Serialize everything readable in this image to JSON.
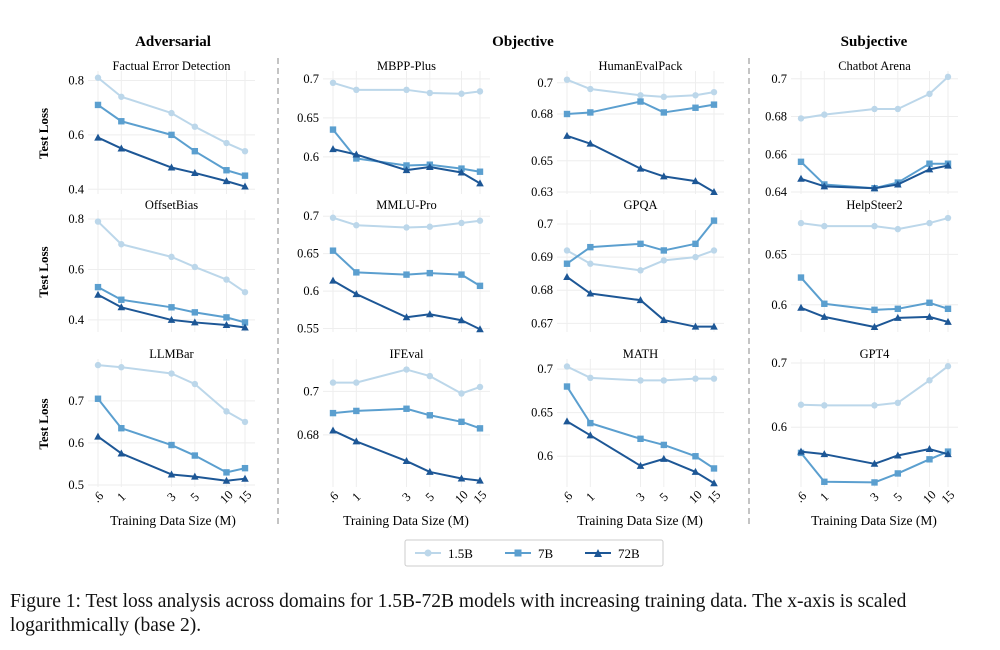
{
  "figure": {
    "groups": [
      "Adversarial",
      "Objective",
      "Subjective"
    ],
    "ylabel": "Test Loss",
    "xlabel": "Training Data Size (M)",
    "legend": {
      "series": [
        {
          "name": "1.5B",
          "color": "#bcd7ea",
          "marker": "circle"
        },
        {
          "name": "7B",
          "color": "#5b9fcf",
          "marker": "square"
        },
        {
          "name": "72B",
          "color": "#1d5796",
          "marker": "triangle"
        }
      ]
    },
    "caption": "Figure 1: Test loss analysis across domains for 1.5B-72B models with increasing training data. The x-axis is scaled logarithmically (base 2)."
  },
  "chart_data": [
    {
      "type": "line",
      "title": "Factual Error Detection",
      "x_ticks": [
        ".6",
        "1",
        "3",
        "5",
        "10",
        "15"
      ],
      "x": [
        0.6,
        1,
        3,
        5,
        10,
        15
      ],
      "y_ticks": [
        0.8,
        0.6,
        0.4
      ],
      "ylim": [
        0.39,
        0.82
      ],
      "series": [
        {
          "name": "1.5B",
          "values": [
            0.81,
            0.74,
            0.68,
            0.63,
            0.57,
            0.54
          ]
        },
        {
          "name": "7B",
          "values": [
            0.71,
            0.65,
            0.6,
            0.54,
            0.47,
            0.45
          ]
        },
        {
          "name": "72B",
          "values": [
            0.59,
            0.55,
            0.48,
            0.46,
            0.43,
            0.41
          ]
        }
      ]
    },
    {
      "type": "line",
      "title": "MBPP-Plus",
      "x_ticks": [
        ".6",
        "1",
        "3",
        "5",
        "10",
        "15"
      ],
      "x": [
        0.6,
        1,
        3,
        5,
        10,
        15
      ],
      "y_ticks": [
        0.7,
        0.65,
        0.6
      ],
      "ylim": [
        0.555,
        0.705
      ],
      "series": [
        {
          "name": "1.5B",
          "values": [
            0.695,
            0.686,
            0.686,
            0.682,
            0.681,
            0.684
          ]
        },
        {
          "name": "7B",
          "values": [
            0.635,
            0.598,
            0.589,
            0.59,
            0.585,
            0.581
          ]
        },
        {
          "name": "72B",
          "values": [
            0.61,
            0.603,
            0.583,
            0.587,
            0.58,
            0.566
          ]
        }
      ]
    },
    {
      "type": "line",
      "title": "HumanEvalPack",
      "x_ticks": [
        ".6",
        "1",
        "3",
        "5",
        "10",
        "15"
      ],
      "x": [
        0.6,
        1,
        3,
        5,
        10,
        15
      ],
      "y_ticks": [
        0.7,
        0.68,
        0.65,
        0.63
      ],
      "ylim": [
        0.63,
        0.705
      ],
      "series": [
        {
          "name": "1.5B",
          "values": [
            0.702,
            0.696,
            0.692,
            0.691,
            0.692,
            0.694
          ]
        },
        {
          "name": "7B",
          "values": [
            0.68,
            0.681,
            0.688,
            0.681,
            0.684,
            0.686
          ]
        },
        {
          "name": "72B",
          "values": [
            0.666,
            0.661,
            0.645,
            0.64,
            0.637,
            0.63
          ]
        }
      ]
    },
    {
      "type": "line",
      "title": "Chatbot Arena",
      "x_ticks": [
        ".6",
        "1",
        "3",
        "5",
        "10",
        "15"
      ],
      "x": [
        0.6,
        1,
        3,
        5,
        10,
        15
      ],
      "y_ticks": [
        0.7,
        0.68,
        0.66,
        0.64
      ],
      "ylim": [
        0.64,
        0.702
      ],
      "series": [
        {
          "name": "1.5B",
          "values": [
            0.679,
            0.681,
            0.684,
            0.684,
            0.692,
            0.701
          ]
        },
        {
          "name": "7B",
          "values": [
            0.656,
            0.644,
            0.642,
            0.645,
            0.655,
            0.655
          ]
        },
        {
          "name": "72B",
          "values": [
            0.647,
            0.643,
            0.642,
            0.644,
            0.652,
            0.654
          ]
        }
      ]
    },
    {
      "type": "line",
      "title": "OffsetBias",
      "x_ticks": [
        ".6",
        "1",
        "3",
        "5",
        "10",
        "15"
      ],
      "x": [
        0.6,
        1,
        3,
        5,
        10,
        15
      ],
      "y_ticks": [
        0.8,
        0.6,
        0.4
      ],
      "ylim": [
        0.36,
        0.82
      ],
      "series": [
        {
          "name": "1.5B",
          "values": [
            0.79,
            0.7,
            0.65,
            0.61,
            0.56,
            0.51
          ]
        },
        {
          "name": "7B",
          "values": [
            0.53,
            0.48,
            0.45,
            0.43,
            0.41,
            0.39
          ]
        },
        {
          "name": "72B",
          "values": [
            0.5,
            0.45,
            0.4,
            0.39,
            0.38,
            0.37
          ]
        }
      ]
    },
    {
      "type": "line",
      "title": "MMLU-Pro",
      "x_ticks": [
        ".6",
        "1",
        "3",
        "5",
        "10",
        "15"
      ],
      "x": [
        0.6,
        1,
        3,
        5,
        10,
        15
      ],
      "y_ticks": [
        0.7,
        0.65,
        0.6,
        0.55
      ],
      "ylim": [
        0.548,
        0.703
      ],
      "series": [
        {
          "name": "1.5B",
          "values": [
            0.698,
            0.688,
            0.685,
            0.686,
            0.691,
            0.694
          ]
        },
        {
          "name": "7B",
          "values": [
            0.654,
            0.625,
            0.622,
            0.624,
            0.622,
            0.607
          ]
        },
        {
          "name": "72B",
          "values": [
            0.614,
            0.596,
            0.565,
            0.569,
            0.561,
            0.549
          ]
        }
      ]
    },
    {
      "type": "line",
      "title": "GPQA",
      "x_ticks": [
        ".6",
        "1",
        "3",
        "5",
        "10",
        "15"
      ],
      "x": [
        0.6,
        1,
        3,
        5,
        10,
        15
      ],
      "y_ticks": [
        0.7,
        0.69,
        0.68,
        0.67
      ],
      "ylim": [
        0.668,
        0.703
      ],
      "series": [
        {
          "name": "1.5B",
          "values": [
            0.692,
            0.688,
            0.686,
            0.689,
            0.69,
            0.692
          ]
        },
        {
          "name": "7B",
          "values": [
            0.688,
            0.693,
            0.694,
            0.692,
            0.694,
            0.701
          ]
        },
        {
          "name": "72B",
          "values": [
            0.684,
            0.679,
            0.677,
            0.671,
            0.669,
            0.669
          ]
        }
      ]
    },
    {
      "type": "line",
      "title": "HelpSteer2",
      "x_ticks": [
        ".6",
        "1",
        "3",
        "5",
        "10",
        "15"
      ],
      "x": [
        0.6,
        1,
        3,
        5,
        10,
        15
      ],
      "y_ticks": [
        0.65,
        0.6
      ],
      "ylim": [
        0.575,
        0.69
      ],
      "series": [
        {
          "name": "1.5B",
          "values": [
            0.681,
            0.678,
            0.678,
            0.675,
            0.681,
            0.686
          ]
        },
        {
          "name": "7B",
          "values": [
            0.627,
            0.601,
            0.595,
            0.596,
            0.602,
            0.596
          ]
        },
        {
          "name": "72B",
          "values": [
            0.597,
            0.588,
            0.578,
            0.587,
            0.588,
            0.583
          ]
        }
      ]
    },
    {
      "type": "line",
      "title": "LLMBar",
      "x_ticks": [
        ".6",
        "1",
        "3",
        "5",
        "10",
        "15"
      ],
      "x": [
        0.6,
        1,
        3,
        5,
        10,
        15
      ],
      "y_ticks": [
        0.7,
        0.6,
        0.5
      ],
      "ylim": [
        0.5,
        0.79
      ],
      "series": [
        {
          "name": "1.5B",
          "values": [
            0.785,
            0.78,
            0.765,
            0.74,
            0.675,
            0.65
          ]
        },
        {
          "name": "7B",
          "values": [
            0.705,
            0.635,
            0.595,
            0.57,
            0.53,
            0.54
          ]
        },
        {
          "name": "72B",
          "values": [
            0.615,
            0.575,
            0.525,
            0.52,
            0.51,
            0.515
          ]
        }
      ]
    },
    {
      "type": "line",
      "title": "IFEval",
      "x_ticks": [
        ".6",
        "1",
        "3",
        "5",
        "10",
        "15"
      ],
      "x": [
        0.6,
        1,
        3,
        5,
        10,
        15
      ],
      "y_ticks": [
        0.7,
        0.68
      ],
      "ylim": [
        0.657,
        0.713
      ],
      "series": [
        {
          "name": "1.5B",
          "values": [
            0.704,
            0.704,
            0.71,
            0.707,
            0.699,
            0.702
          ]
        },
        {
          "name": "7B",
          "values": [
            0.69,
            0.691,
            0.692,
            0.689,
            0.686,
            0.683
          ]
        },
        {
          "name": "72B",
          "values": [
            0.682,
            0.677,
            0.668,
            0.663,
            0.66,
            0.659
          ]
        }
      ]
    },
    {
      "type": "line",
      "title": "MATH",
      "x_ticks": [
        ".6",
        "1",
        "3",
        "5",
        "10",
        "15"
      ],
      "x": [
        0.6,
        1,
        3,
        5,
        10,
        15
      ],
      "y_ticks": [
        0.7,
        0.65,
        0.6
      ],
      "ylim": [
        0.567,
        0.707
      ],
      "series": [
        {
          "name": "1.5B",
          "values": [
            0.703,
            0.69,
            0.687,
            0.687,
            0.689,
            0.689
          ]
        },
        {
          "name": "7B",
          "values": [
            0.68,
            0.638,
            0.62,
            0.613,
            0.6,
            0.586
          ]
        },
        {
          "name": "72B",
          "values": [
            0.64,
            0.624,
            0.589,
            0.597,
            0.582,
            0.569
          ]
        }
      ]
    },
    {
      "type": "line",
      "title": "GPT4",
      "x_ticks": [
        ".6",
        "1",
        "3",
        "5",
        "10",
        "15"
      ],
      "x": [
        0.6,
        1,
        3,
        5,
        10,
        15
      ],
      "y_ticks": [
        0.7,
        0.6
      ],
      "ylim": [
        0.51,
        0.7
      ],
      "series": [
        {
          "name": "1.5B",
          "values": [
            0.635,
            0.634,
            0.634,
            0.638,
            0.673,
            0.695
          ]
        },
        {
          "name": "7B",
          "values": [
            0.56,
            0.515,
            0.514,
            0.528,
            0.55,
            0.562
          ]
        },
        {
          "name": "72B",
          "values": [
            0.562,
            0.558,
            0.543,
            0.556,
            0.566,
            0.558
          ]
        }
      ]
    }
  ]
}
